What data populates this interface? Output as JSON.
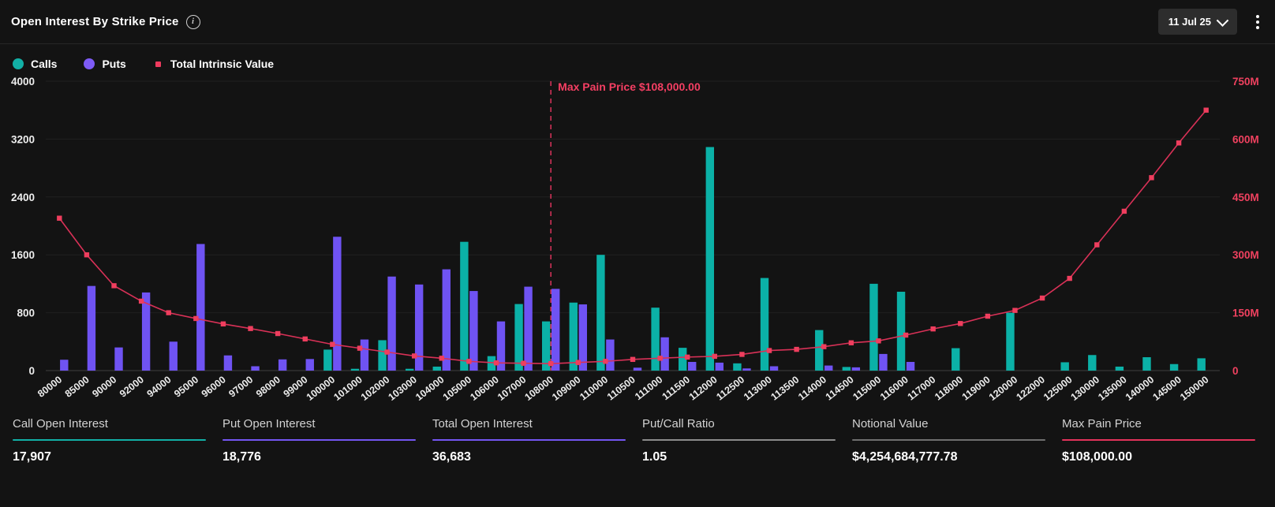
{
  "header": {
    "title": "Open Interest By Strike Price",
    "date_selector": {
      "value": "11 Jul 25"
    },
    "icons": {
      "info": "info-circle",
      "chevron": "chevron-down",
      "menu": "kebab-vertical"
    }
  },
  "legend": {
    "items": [
      {
        "label": "Calls",
        "shape": "circle",
        "color": "#12b0a6"
      },
      {
        "label": "Puts",
        "shape": "circle",
        "color": "#7e5bf6"
      },
      {
        "label": "Total Intrinsic Value",
        "shape": "square",
        "color": "#ef3b5e"
      }
    ]
  },
  "chart_data": {
    "type": "bar+line",
    "title": "Open Interest By Strike Price",
    "grid": true,
    "legend_position": "top-left",
    "categories": [
      "80000",
      "85000",
      "90000",
      "92000",
      "94000",
      "95000",
      "96000",
      "97000",
      "98000",
      "99000",
      "100000",
      "101000",
      "102000",
      "103000",
      "104000",
      "105000",
      "106000",
      "107000",
      "108000",
      "109000",
      "110000",
      "110500",
      "111000",
      "111500",
      "112000",
      "112500",
      "113000",
      "113500",
      "114000",
      "114500",
      "115000",
      "116000",
      "117000",
      "118000",
      "119000",
      "120000",
      "122000",
      "125000",
      "130000",
      "135000",
      "140000",
      "145000",
      "150000"
    ],
    "series": [
      {
        "name": "Calls",
        "type": "bar",
        "axis": "left",
        "color": "#0bb1a7",
        "values": [
          0,
          0,
          0,
          0,
          0,
          0,
          0,
          0,
          0,
          0,
          290,
          25,
          420,
          25,
          55,
          1780,
          200,
          920,
          680,
          940,
          1600,
          0,
          870,
          315,
          3090,
          100,
          1280,
          0,
          560,
          50,
          1200,
          1090,
          0,
          310,
          0,
          800,
          0,
          115,
          215,
          55,
          185,
          90,
          170
        ]
      },
      {
        "name": "Puts",
        "type": "bar",
        "axis": "left",
        "color": "#6f53f3",
        "values": [
          150,
          1170,
          320,
          1080,
          400,
          1750,
          210,
          60,
          155,
          160,
          1850,
          430,
          1300,
          1190,
          1400,
          1100,
          680,
          1160,
          1130,
          915,
          430,
          40,
          460,
          120,
          110,
          30,
          60,
          0,
          70,
          45,
          230,
          120,
          0,
          0,
          0,
          0,
          0,
          0,
          0,
          0,
          0,
          0,
          0
        ]
      },
      {
        "name": "Total Intrinsic Value",
        "type": "line",
        "axis": "right",
        "color": "#d93157",
        "marker_color": "#ef3e5e",
        "values_millions": [
          395,
          300,
          220,
          180,
          150,
          135,
          121,
          109,
          96,
          82,
          68,
          58,
          48,
          38,
          32,
          24,
          20,
          19,
          18,
          21,
          24,
          29,
          32,
          35,
          37,
          42,
          52,
          55,
          62,
          72,
          77,
          92,
          108,
          122,
          141,
          156,
          188,
          239,
          326,
          413,
          500,
          590,
          675
        ]
      }
    ],
    "left_axis": {
      "min": 0,
      "max": 4000,
      "ticks": [
        "0",
        "800",
        "1600",
        "2400",
        "3200",
        "4000"
      ],
      "label_color": "#ededed"
    },
    "right_axis": {
      "min": 0,
      "max": 750,
      "unit": "M",
      "ticks": [
        "0",
        "150M",
        "300M",
        "450M",
        "600M",
        "750M"
      ],
      "label_color": "#ef415f"
    },
    "annotation": {
      "label": "Max Pain Price $108,000.00",
      "category": "108000",
      "line_style": "dashed",
      "color": "#f53f63",
      "line_color": "#cf3157"
    }
  },
  "stats": {
    "items": [
      {
        "label": "Call Open Interest",
        "value": "17,907",
        "accent": "#12b0a6"
      },
      {
        "label": "Put Open Interest",
        "value": "18,776",
        "accent": "#7456f2"
      },
      {
        "label": "Total Open Interest",
        "value": "36,683",
        "accent": "#7456f2"
      },
      {
        "label": "Put/Call Ratio",
        "value": "1.05",
        "accent": "#8b8b8b"
      },
      {
        "label": "Notional Value",
        "value": "$4,254,684,777.78",
        "accent": "#6f6f6f"
      },
      {
        "label": "Max Pain Price",
        "value": "$108,000.00",
        "accent": "#e3335b"
      }
    ]
  }
}
